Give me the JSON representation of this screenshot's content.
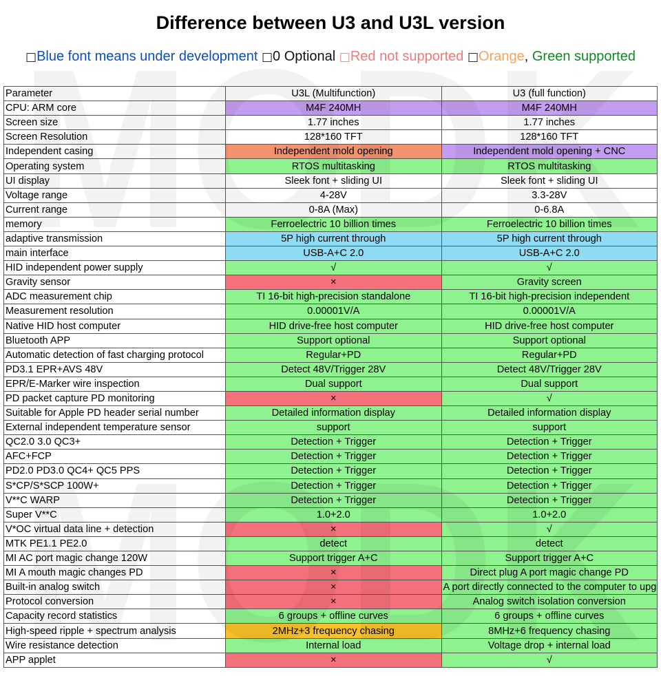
{
  "title": "Difference between U3 and U3L version",
  "legend": {
    "box": "□",
    "blue": "Blue font means under development",
    "optional": "0 Optional",
    "red": "Red not supported",
    "orange": "Orange",
    "comma": ",",
    "green": "Green supported"
  },
  "watermark": "MODK",
  "colors": {
    "purple": "#c39df1",
    "salmon": "#f2936f",
    "green": "#8ef28e",
    "cyan": "#8fdcf5",
    "red": "#f4707a",
    "orange": "#f8c12a",
    "white": "#ffffff"
  },
  "table": {
    "headers": [
      "Parameter",
      "U3L (Multifunction)",
      "U3 (full function)"
    ],
    "rows": [
      {
        "param": "CPU: ARM core",
        "u3l": "M4F 240MH",
        "u3l_color": "purple",
        "u3": "M4F 240MH",
        "u3_color": "purple"
      },
      {
        "param": "Screen size",
        "u3l": "1.77 inches",
        "u3l_color": "white",
        "u3": "1.77 inches",
        "u3_color": "white"
      },
      {
        "param": "Screen Resolution",
        "u3l": "128*160 TFT",
        "u3l_color": "white",
        "u3": "128*160 TFT",
        "u3_color": "white"
      },
      {
        "param": "Independent casing",
        "u3l": "Independent mold opening",
        "u3l_color": "salmon",
        "u3": "Independent mold opening + CNC",
        "u3_color": "purple"
      },
      {
        "param": "Operating system",
        "u3l": "RTOS multitasking",
        "u3l_color": "green",
        "u3": "RTOS multitasking",
        "u3_color": "green"
      },
      {
        "param": "UI display",
        "u3l": "Sleek font + sliding UI",
        "u3l_color": "white",
        "u3": "Sleek font + sliding UI",
        "u3_color": "white"
      },
      {
        "param": "Voltage range",
        "u3l": "4-28V",
        "u3l_color": "white",
        "u3": "3.3-28V",
        "u3_color": "white"
      },
      {
        "param": "Current range",
        "u3l": "0-8A (Max)",
        "u3l_color": "white",
        "u3": "0-6.8A",
        "u3_color": "white"
      },
      {
        "param": "memory",
        "u3l": "Ferroelectric 10 billion times",
        "u3l_color": "green",
        "u3": "Ferroelectric 10 billion times",
        "u3_color": "green"
      },
      {
        "param": "adaptive transmission",
        "u3l": "5P high current through",
        "u3l_color": "cyan",
        "u3": "5P high current through",
        "u3_color": "cyan"
      },
      {
        "param": "main interface",
        "u3l": "USB-A+C 2.0",
        "u3l_color": "cyan",
        "u3": "USB-A+C 2.0",
        "u3_color": "cyan"
      },
      {
        "param": "HID independent power supply",
        "u3l": "√",
        "u3l_color": "green",
        "u3": "√",
        "u3_color": "green"
      },
      {
        "param": "Gravity sensor",
        "u3l": "×",
        "u3l_color": "red",
        "u3": "Gravity screen",
        "u3_color": "green"
      },
      {
        "param": "ADC measurement chip",
        "u3l": "TI 16-bit high-precision standalone",
        "u3l_color": "green",
        "u3": "TI 16-bit high-precision independent",
        "u3_color": "green"
      },
      {
        "param": "Measurement resolution",
        "u3l": "0.00001V/A",
        "u3l_color": "green",
        "u3": "0.00001V/A",
        "u3_color": "green"
      },
      {
        "param": "Native HID host computer",
        "u3l": "HID drive-free host computer",
        "u3l_color": "green",
        "u3": "HID drive-free host computer",
        "u3_color": "green"
      },
      {
        "param": "Bluetooth APP",
        "u3l": "Support optional",
        "u3l_color": "green",
        "u3": "Support optional",
        "u3_color": "green"
      },
      {
        "param": "Automatic detection of fast charging protocol",
        "u3l": "Regular+PD",
        "u3l_color": "green",
        "u3": "Regular+PD",
        "u3_color": "green"
      },
      {
        "param": "PD3.1 EPR+AVS 48V",
        "u3l": "Detect 48V/Trigger 28V",
        "u3l_color": "green",
        "u3": "Detect 48V/Trigger 28V",
        "u3_color": "green"
      },
      {
        "param": "EPR/E-Marker wire inspection",
        "u3l": "Dual support",
        "u3l_color": "green",
        "u3": "Dual support",
        "u3_color": "green"
      },
      {
        "param": "PD packet capture PD monitoring",
        "u3l": "×",
        "u3l_color": "red",
        "u3": "√",
        "u3_color": "green"
      },
      {
        "param": "Suitable for Apple PD header serial number",
        "u3l": "Detailed information display",
        "u3l_color": "green",
        "u3": "Detailed information display",
        "u3_color": "green"
      },
      {
        "param": "External independent temperature sensor",
        "u3l": "support",
        "u3l_color": "green",
        "u3": "support",
        "u3_color": "green"
      },
      {
        "param": "QC2.0 3.0 QC3+",
        "u3l": "Detection + Trigger",
        "u3l_color": "green",
        "u3": "Detection + Trigger",
        "u3_color": "green"
      },
      {
        "param": "AFC+FCP",
        "u3l": "Detection + Trigger",
        "u3l_color": "green",
        "u3": "Detection + Trigger",
        "u3_color": "green"
      },
      {
        "param": "PD2.0 PD3.0 QC4+ QC5 PPS",
        "u3l": "Detection + Trigger",
        "u3l_color": "green",
        "u3": "Detection + Trigger",
        "u3_color": "green"
      },
      {
        "param": "S*CP/S*SCP 100W+",
        "u3l": "Detection + Trigger",
        "u3l_color": "green",
        "u3": "Detection + Trigger",
        "u3_color": "green"
      },
      {
        "param": "V**C WARP",
        "u3l": "Detection + Trigger",
        "u3l_color": "green",
        "u3": "Detection + Trigger",
        "u3_color": "green"
      },
      {
        "param": "Super V**C",
        "u3l": "1.0+2.0",
        "u3l_color": "green",
        "u3": "1.0+2.0",
        "u3_color": "green"
      },
      {
        "param": "V*OC virtual data line + detection",
        "u3l": "×",
        "u3l_color": "red",
        "u3": "√",
        "u3_color": "green"
      },
      {
        "param": "MTK PE1.1 PE2.0",
        "u3l": "detect",
        "u3l_color": "green",
        "u3": "detect",
        "u3_color": "green"
      },
      {
        "param": "MI AC port magic change 120W",
        "u3l": "Support trigger A+C",
        "u3l_color": "green",
        "u3": "Support trigger A+C",
        "u3_color": "green"
      },
      {
        "param": "MI A mouth magic changes PD",
        "u3l": "×",
        "u3l_color": "red",
        "u3": "Direct plug A port magic change PD",
        "u3_color": "green"
      },
      {
        "param": "Built-in analog switch",
        "u3l": "×",
        "u3l_color": "red",
        "u3": "A port directly connected to the computer to upgrade",
        "u3_color": "green"
      },
      {
        "param": "Protocol conversion",
        "u3l": "×",
        "u3l_color": "red",
        "u3": "Analog switch isolation conversion",
        "u3_color": "green"
      },
      {
        "param": "Capacity record statistics",
        "u3l": "6 groups + offline curves",
        "u3l_color": "green",
        "u3": "6 groups + offline curves",
        "u3_color": "green"
      },
      {
        "param": "High-speed ripple + spectrum analysis",
        "u3l": "2MHz+3 frequency chasing",
        "u3l_color": "orange",
        "u3": "8MHz+6 frequency chasing",
        "u3_color": "green"
      },
      {
        "param": "Wire resistance detection",
        "u3l": "Internal load",
        "u3l_color": "green",
        "u3": "Voltage drop + internal load",
        "u3_color": "green"
      },
      {
        "param": "APP applet",
        "u3l": "×",
        "u3l_color": "red",
        "u3": "√",
        "u3_color": "green"
      }
    ]
  }
}
